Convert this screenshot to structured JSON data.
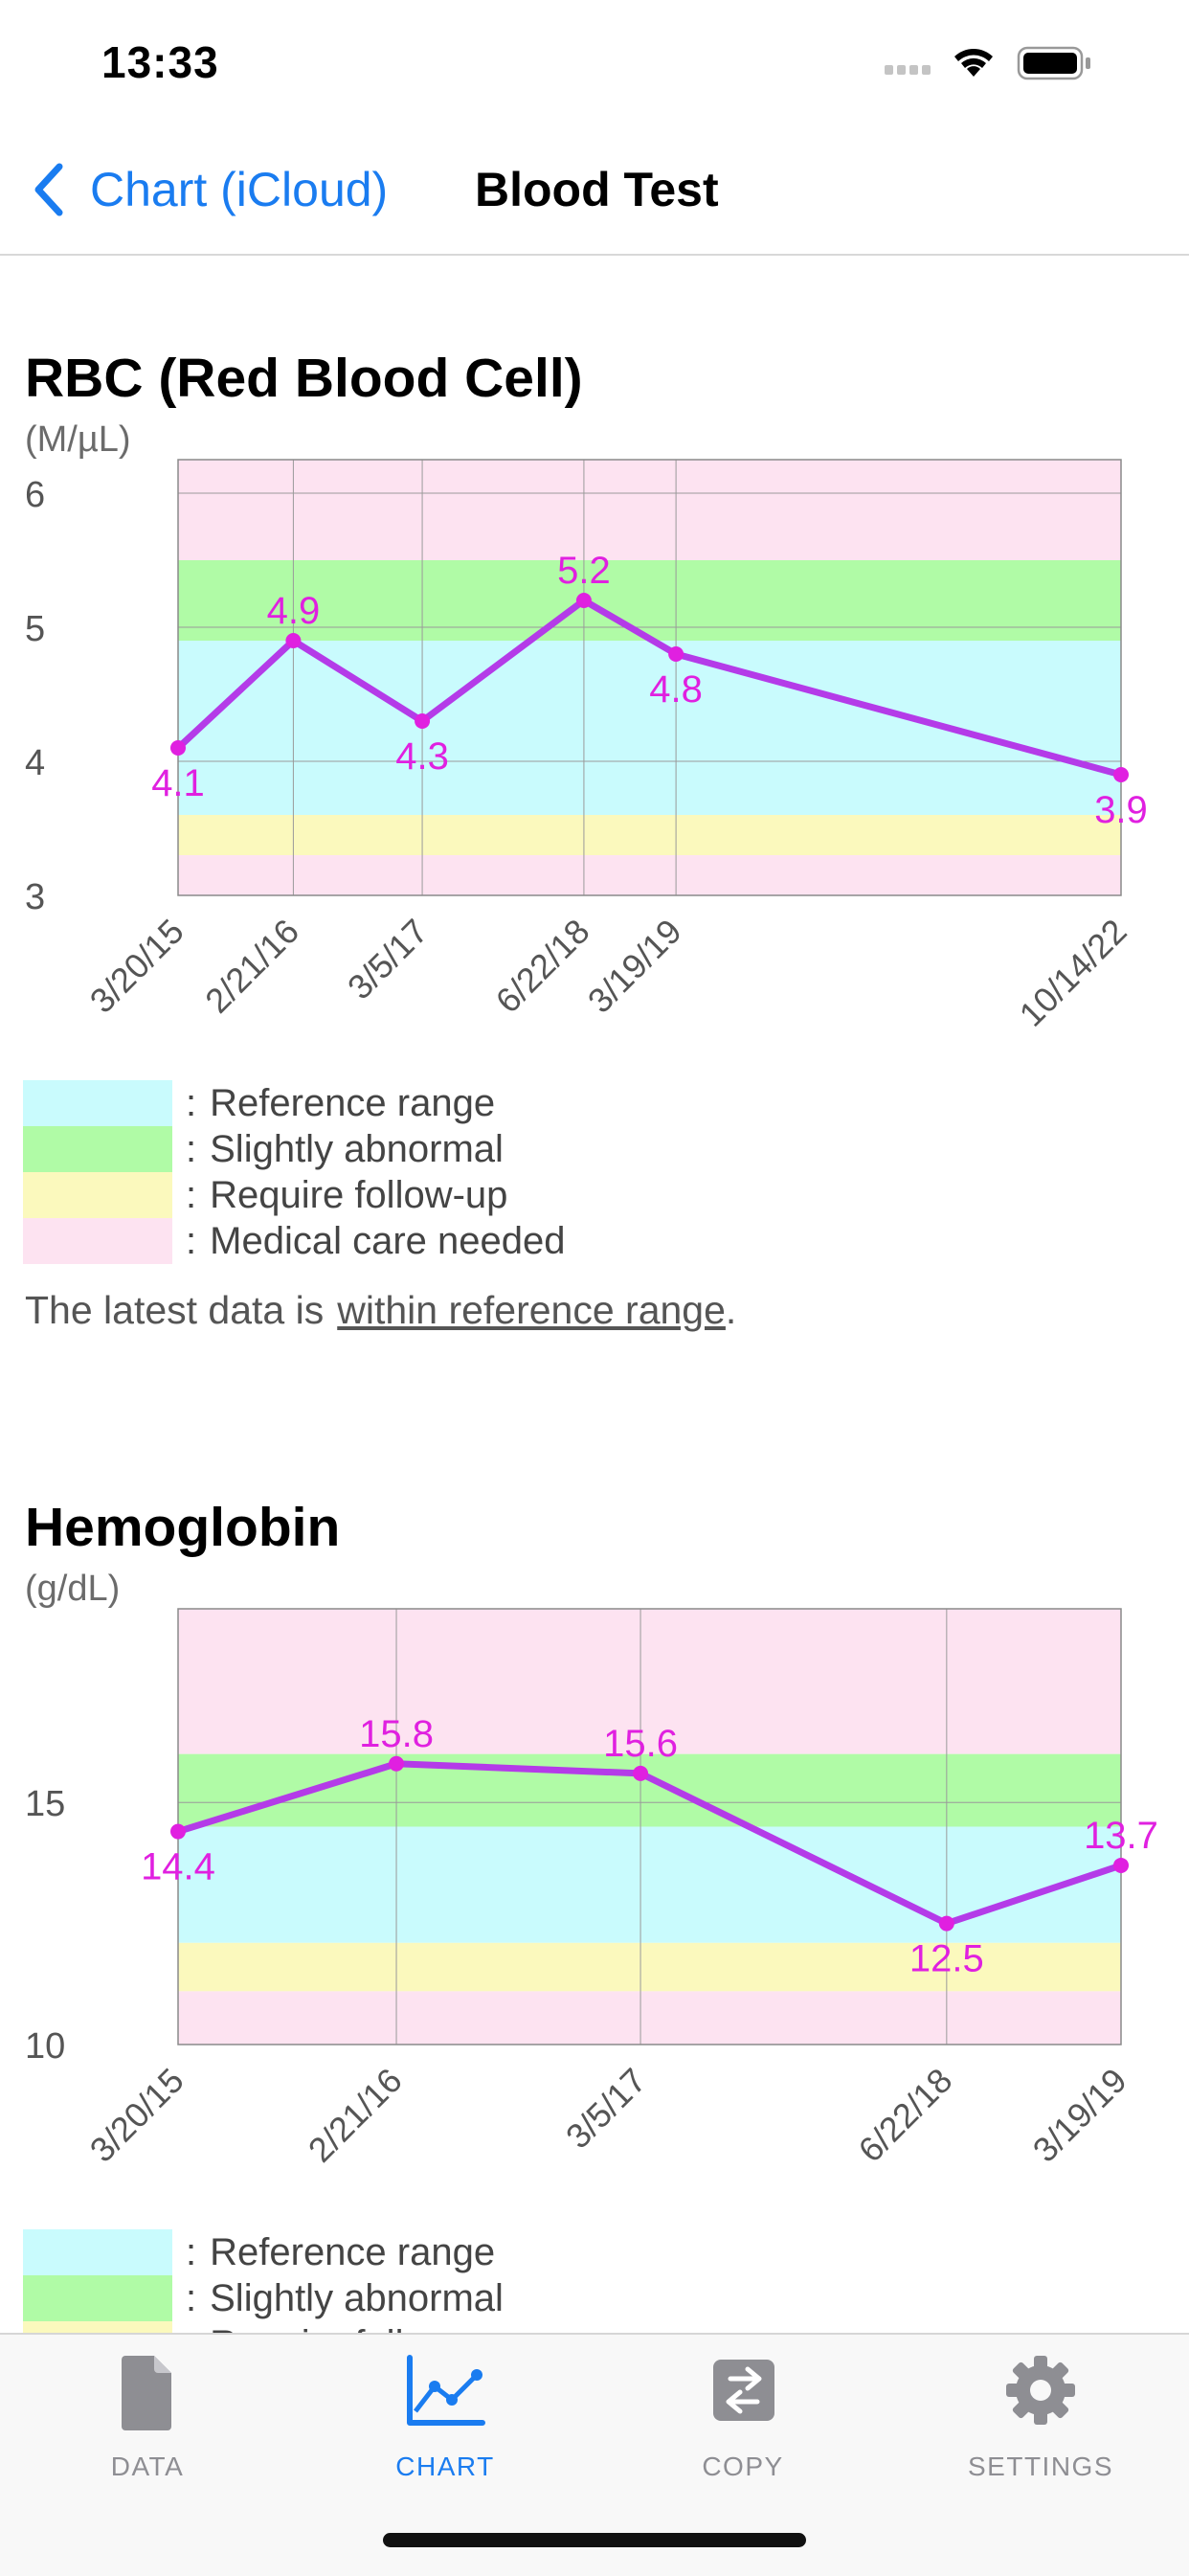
{
  "status_bar": {
    "time": "13:33"
  },
  "nav": {
    "back_label": "Chart (iCloud)",
    "title": "Blood Test"
  },
  "rbc": {
    "title": "RBC (Red Blood Cell)",
    "unit": "(M/µL)"
  },
  "hemoglobin": {
    "title": "Hemoglobin",
    "unit": "(g/dL)"
  },
  "legend": [
    {
      "label": "Reference range",
      "color": "#c9fbfd"
    },
    {
      "label": "Slightly abnormal",
      "color": "#b0fba6"
    },
    {
      "label": "Require follow-up",
      "color": "#fbf9bd"
    },
    {
      "label": "Medical care needed",
      "color": "#fde3f1"
    }
  ],
  "legend_separator": ":",
  "note": {
    "prefix": "The latest data is",
    "link": "within reference range",
    "suffix": "."
  },
  "tabs": [
    {
      "label": "DATA",
      "icon": "document-icon",
      "active": false
    },
    {
      "label": "CHART",
      "icon": "line-chart-icon",
      "active": true
    },
    {
      "label": "COPY",
      "icon": "copy-arrows-icon",
      "active": false
    },
    {
      "label": "SETTINGS",
      "icon": "gear-icon",
      "active": false
    }
  ],
  "colors": {
    "accent": "#1a7cf0",
    "line": "#b43be8",
    "point_label": "#e020e0"
  },
  "chart_data": [
    {
      "type": "line",
      "title": "RBC (Red Blood Cell)",
      "ylabel": "(M/µL)",
      "x": [
        "3/20/15",
        "2/21/16",
        "3/5/17",
        "6/22/18",
        "3/19/19",
        "10/14/22"
      ],
      "values": [
        4.1,
        4.9,
        4.3,
        5.2,
        4.8,
        3.9
      ],
      "ylim": [
        3,
        6.25
      ],
      "yticks": [
        3,
        4,
        5,
        6
      ],
      "bands": [
        {
          "range": [
            5.5,
            6.25
          ],
          "category": "Medical care needed"
        },
        {
          "range": [
            4.9,
            5.5
          ],
          "category": "Slightly abnormal"
        },
        {
          "range": [
            3.6,
            4.9
          ],
          "category": "Reference range"
        },
        {
          "range": [
            3.3,
            3.6
          ],
          "category": "Require follow-up"
        },
        {
          "range": [
            3,
            3.3
          ],
          "category": "Medical care needed"
        }
      ],
      "grid": true
    },
    {
      "type": "line",
      "title": "Hemoglobin",
      "ylabel": "(g/dL)",
      "x": [
        "3/20/15",
        "2/21/16",
        "3/5/17",
        "6/22/18",
        "3/19/19"
      ],
      "values": [
        14.4,
        15.8,
        15.6,
        12.5,
        13.7
      ],
      "ylim": [
        10,
        19
      ],
      "yticks": [
        10,
        15
      ],
      "bands": [
        {
          "range": [
            16,
            19
          ],
          "category": "Medical care needed"
        },
        {
          "range": [
            14.5,
            16
          ],
          "category": "Slightly abnormal"
        },
        {
          "range": [
            12.1,
            14.5
          ],
          "category": "Reference range"
        },
        {
          "range": [
            11.1,
            12.1
          ],
          "category": "Require follow-up"
        },
        {
          "range": [
            10,
            11.1
          ],
          "category": "Medical care needed"
        }
      ],
      "grid": true
    }
  ]
}
